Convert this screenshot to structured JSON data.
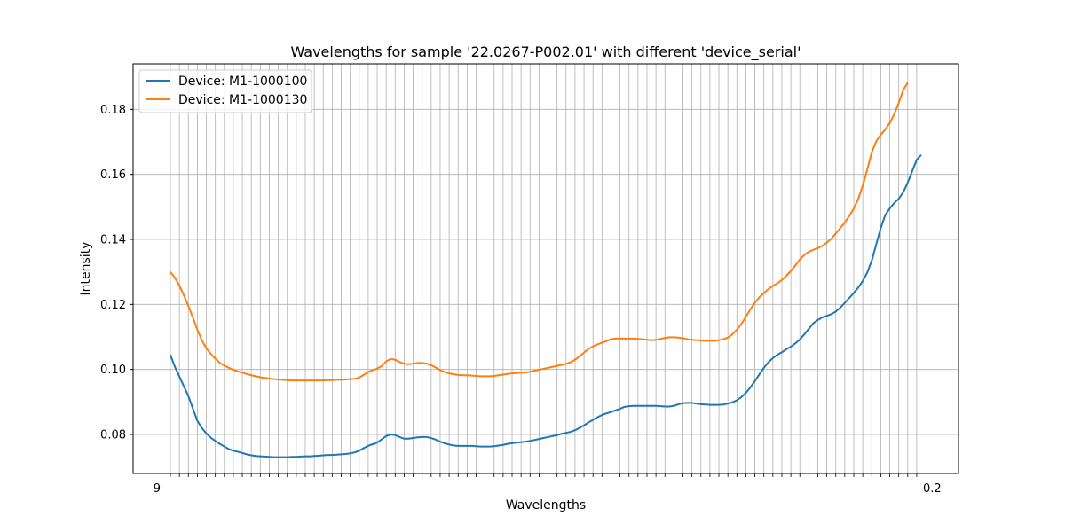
{
  "chart_data": {
    "type": "line",
    "title": "Wavelengths for sample '22.0267-P002.01' with different 'device_serial'",
    "xlabel": "Wavelengths",
    "ylabel": "Intensity",
    "ylim": [
      0.068,
      0.194
    ],
    "y_ticks": [
      "0.08",
      "0.10",
      "0.12",
      "0.14",
      "0.16",
      "0.18"
    ],
    "x_range_label_start": "9",
    "x_range_label_end": "0.2",
    "grid": true,
    "legend_position": "top-left",
    "series": [
      {
        "name": "Device: M1-1000100",
        "color": "#1f77b4",
        "values": [
          0.1045,
          0.1008,
          0.0978,
          0.0948,
          0.0918,
          0.088,
          0.0842,
          0.082,
          0.0803,
          0.079,
          0.078,
          0.0771,
          0.0763,
          0.0755,
          0.075,
          0.0747,
          0.0743,
          0.0739,
          0.0736,
          0.0734,
          0.0733,
          0.0732,
          0.0731,
          0.073,
          0.073,
          0.073,
          0.073,
          0.0731,
          0.0731,
          0.0732,
          0.0733,
          0.0733,
          0.0734,
          0.0735,
          0.0736,
          0.0737,
          0.0737,
          0.0738,
          0.0739,
          0.074,
          0.0742,
          0.0745,
          0.075,
          0.0758,
          0.0765,
          0.077,
          0.0775,
          0.0785,
          0.0795,
          0.08,
          0.0798,
          0.0792,
          0.0787,
          0.0787,
          0.0789,
          0.0791,
          0.0792,
          0.0792,
          0.0789,
          0.0784,
          0.0778,
          0.0773,
          0.0769,
          0.0766,
          0.0765,
          0.0765,
          0.0765,
          0.0765,
          0.0764,
          0.0763,
          0.0763,
          0.0763,
          0.0764,
          0.0766,
          0.0768,
          0.0771,
          0.0773,
          0.0775,
          0.0776,
          0.0778,
          0.078,
          0.0783,
          0.0786,
          0.0789,
          0.0792,
          0.0795,
          0.0798,
          0.0802,
          0.0805,
          0.0808,
          0.0813,
          0.082,
          0.0828,
          0.0837,
          0.0845,
          0.0853,
          0.086,
          0.0865,
          0.0869,
          0.0874,
          0.0879,
          0.0885,
          0.0887,
          0.0888,
          0.0888,
          0.0888,
          0.0888,
          0.0888,
          0.0888,
          0.0887,
          0.0886,
          0.0886,
          0.0888,
          0.0893,
          0.0896,
          0.0897,
          0.0897,
          0.0895,
          0.0893,
          0.0892,
          0.0891,
          0.0891,
          0.0891,
          0.0892,
          0.0895,
          0.0899,
          0.0905,
          0.0915,
          0.0928,
          0.0945,
          0.0964,
          0.0985,
          0.1005,
          0.1022,
          0.1035,
          0.1045,
          0.1053,
          0.1062,
          0.107,
          0.108,
          0.1092,
          0.1108,
          0.1125,
          0.1142,
          0.1152,
          0.116,
          0.1165,
          0.117,
          0.1178,
          0.119,
          0.1205,
          0.122,
          0.1235,
          0.1252,
          0.1272,
          0.1298,
          0.1335,
          0.1385,
          0.1435,
          0.1475,
          0.1495,
          0.1512,
          0.1525,
          0.1545,
          0.1575,
          0.161,
          0.1645,
          0.166
        ]
      },
      {
        "name": "Device: M1-1000130",
        "color": "#ff7f0e",
        "values": [
          0.13,
          0.1282,
          0.1258,
          0.1228,
          0.1195,
          0.116,
          0.1122,
          0.109,
          0.1065,
          0.1048,
          0.1033,
          0.102,
          0.1012,
          0.1005,
          0.0999,
          0.0994,
          0.099,
          0.0986,
          0.0982,
          0.0979,
          0.0976,
          0.0974,
          0.0972,
          0.097,
          0.0969,
          0.0968,
          0.0967,
          0.0966,
          0.0966,
          0.0966,
          0.0966,
          0.0966,
          0.0966,
          0.0966,
          0.0966,
          0.0967,
          0.0967,
          0.0968,
          0.0968,
          0.0969,
          0.097,
          0.0971,
          0.0975,
          0.0983,
          0.0992,
          0.0998,
          0.1003,
          0.101,
          0.1025,
          0.1032,
          0.103,
          0.1023,
          0.1017,
          0.1016,
          0.1018,
          0.102,
          0.102,
          0.1018,
          0.1013,
          0.1006,
          0.0998,
          0.0992,
          0.0988,
          0.0985,
          0.0983,
          0.0982,
          0.0982,
          0.0981,
          0.098,
          0.0979,
          0.0979,
          0.0979,
          0.098,
          0.0982,
          0.0984,
          0.0986,
          0.0988,
          0.0989,
          0.099,
          0.0991,
          0.0993,
          0.0996,
          0.0999,
          0.1002,
          0.1005,
          0.1008,
          0.1011,
          0.1014,
          0.1017,
          0.1022,
          0.103,
          0.104,
          0.1052,
          0.1063,
          0.1071,
          0.1077,
          0.1082,
          0.1087,
          0.1093,
          0.1095,
          0.1095,
          0.1095,
          0.1095,
          0.1095,
          0.1094,
          0.1093,
          0.1091,
          0.109,
          0.1091,
          0.1094,
          0.1097,
          0.1099,
          0.1099,
          0.1098,
          0.1096,
          0.1093,
          0.1091,
          0.109,
          0.1089,
          0.1088,
          0.1088,
          0.1088,
          0.109,
          0.1093,
          0.1098,
          0.1108,
          0.1122,
          0.114,
          0.1162,
          0.1185,
          0.1205,
          0.1222,
          0.1235,
          0.1247,
          0.1257,
          0.1265,
          0.1275,
          0.1288,
          0.1303,
          0.132,
          0.1338,
          0.1352,
          0.1362,
          0.1368,
          0.1373,
          0.138,
          0.139,
          0.1402,
          0.1418,
          0.1435,
          0.1452,
          0.1472,
          0.1495,
          0.1525,
          0.1565,
          0.1615,
          0.1668,
          0.1702,
          0.1722,
          0.1738,
          0.1758,
          0.1785,
          0.182,
          0.186,
          0.1882
        ]
      }
    ]
  }
}
